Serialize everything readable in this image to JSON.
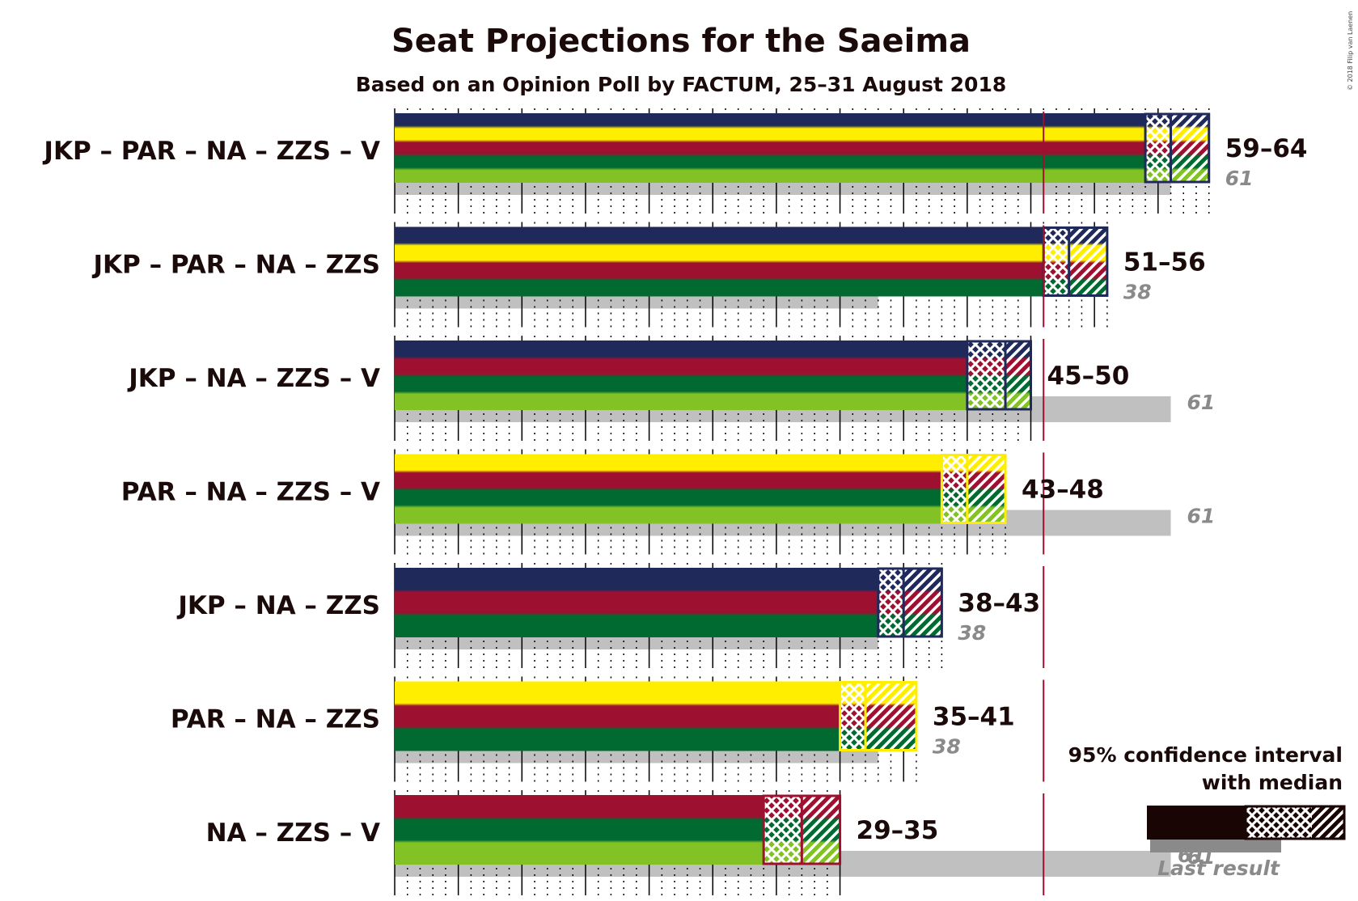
{
  "title": "Seat Projections for the Saeima",
  "subtitle": "Based on an Opinion Poll by FACTUM, 25–31 August 2018",
  "copyright": "© 2018 Filip van Laenen",
  "legend": {
    "line1": "95% confidence interval",
    "line2": "with median",
    "last_result_label": "Last result",
    "example_last_value": "61"
  },
  "colors": {
    "JKP": "#1f2a5a",
    "PAR": "#ffee00",
    "NA": "#9e1030",
    "ZZS": "#006a30",
    "V": "#82c224",
    "last_bar": "#c0c0c0",
    "majority_line": "#9e1030",
    "axis": "#000000"
  },
  "chart_data": {
    "type": "bar",
    "orientation": "horizontal",
    "title": "Seat Projections for the Saeima",
    "subtitle": "Based on an Opinion Poll by FACTUM, 25–31 August 2018",
    "xlim": [
      0,
      64
    ],
    "majority": 51,
    "major_tick_step": 5,
    "grid": true,
    "rows": [
      {
        "label": "JKP – PAR – NA – ZZS – V",
        "parties": [
          "JKP",
          "PAR",
          "NA",
          "ZZS",
          "V"
        ],
        "low": 59,
        "median": 61,
        "high": 64,
        "range_text": "59–64",
        "last": 61,
        "last_text": "61"
      },
      {
        "label": "JKP – PAR – NA – ZZS",
        "parties": [
          "JKP",
          "PAR",
          "NA",
          "ZZS"
        ],
        "low": 51,
        "median": 53,
        "high": 56,
        "range_text": "51–56",
        "last": 38,
        "last_text": "38"
      },
      {
        "label": "JKP – NA – ZZS – V",
        "parties": [
          "JKP",
          "NA",
          "ZZS",
          "V"
        ],
        "low": 45,
        "median": 48,
        "high": 50,
        "range_text": "45–50",
        "last": 61,
        "last_text": "61"
      },
      {
        "label": "PAR – NA – ZZS – V",
        "parties": [
          "PAR",
          "NA",
          "ZZS",
          "V"
        ],
        "low": 43,
        "median": 45,
        "high": 48,
        "range_text": "43–48",
        "last": 61,
        "last_text": "61"
      },
      {
        "label": "JKP – NA – ZZS",
        "parties": [
          "JKP",
          "NA",
          "ZZS"
        ],
        "low": 38,
        "median": 40,
        "high": 43,
        "range_text": "38–43",
        "last": 38,
        "last_text": "38"
      },
      {
        "label": "PAR – NA – ZZS",
        "parties": [
          "PAR",
          "NA",
          "ZZS"
        ],
        "low": 35,
        "median": 37,
        "high": 41,
        "range_text": "35–41",
        "last": 38,
        "last_text": "38"
      },
      {
        "label": "NA – ZZS – V",
        "parties": [
          "NA",
          "ZZS",
          "V"
        ],
        "low": 29,
        "median": 32,
        "high": 35,
        "range_text": "29–35",
        "last": 61,
        "last_text": "61"
      }
    ]
  }
}
